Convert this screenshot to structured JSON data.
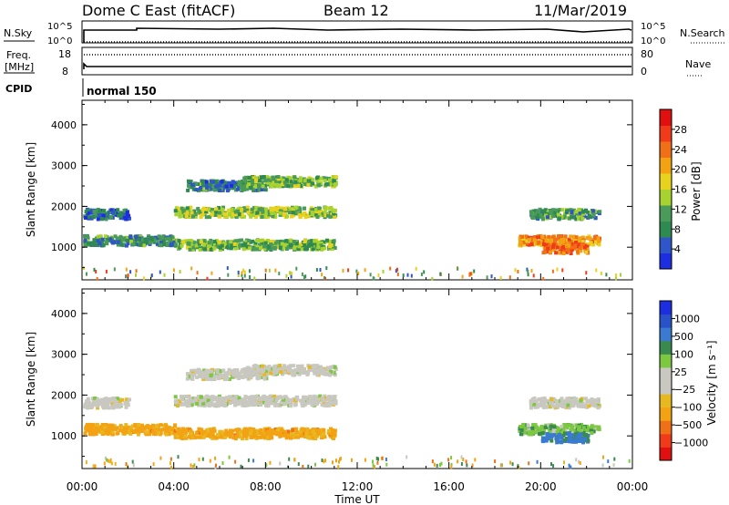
{
  "header": {
    "site": "Dome C East (fitACF)",
    "beam": "Beam 12",
    "date": "11/Mar/2019"
  },
  "status_panels": {
    "nsky_label": "N.Sky",
    "nsearch_label": "N.Search",
    "freq_label_1": "Freq.",
    "freq_label_2": "[MHz]",
    "nave_label": "Nave",
    "cpid_label": "CPID",
    "cpid_value": "normal 150",
    "nsky_ticks": [
      "10^5",
      "10^0"
    ],
    "nsearch_ticks": [
      "10^5",
      "10^0"
    ],
    "freq_ticks": [
      "18",
      "8"
    ],
    "nave_ticks": [
      "80",
      "0"
    ]
  },
  "colors": {
    "power": [
      "#1c2ee0",
      "#2f56c8",
      "#2f8a52",
      "#4a9a5a",
      "#a7d22f",
      "#e8d21e",
      "#f2a212",
      "#f07018",
      "#f03a1a",
      "#e01010"
    ],
    "velocity": [
      "#e01010",
      "#f03a1a",
      "#f07018",
      "#f2a212",
      "#e8b820",
      "#c8c8c0",
      "#c8c8c0",
      "#7cc840",
      "#3a8a50",
      "#3a7ad0",
      "#2a52c8",
      "#1c2ee0"
    ]
  },
  "chart_data": [
    {
      "type": "heatmap",
      "panel": "power",
      "ylabel": "Slant Range [km]",
      "yticks": [
        "1000",
        "2000",
        "3000",
        "4000"
      ],
      "ylim": [
        200,
        4600
      ],
      "xlim": [
        0,
        24
      ],
      "colorbar_label": "Power [dB]",
      "colorbar_ticks": [
        "4",
        "8",
        "12",
        "16",
        "20",
        "24",
        "28"
      ],
      "colorbar_range": [
        0,
        32
      ],
      "bands": [
        {
          "t0": 0.0,
          "t1": 2.0,
          "r": 1850,
          "v": 6
        },
        {
          "t0": 0.0,
          "t1": 4.0,
          "r": 1200,
          "v": 9
        },
        {
          "t0": 4.0,
          "t1": 11.0,
          "r": 1100,
          "v": 12
        },
        {
          "t0": 4.0,
          "t1": 11.0,
          "r": 1900,
          "v": 14
        },
        {
          "t0": 4.5,
          "t1": 8.0,
          "r": 2550,
          "v": 8
        },
        {
          "t0": 7.0,
          "t1": 11.0,
          "r": 2650,
          "v": 12
        },
        {
          "t0": 19.0,
          "t1": 22.5,
          "r": 1200,
          "v": 22
        },
        {
          "t0": 20.0,
          "t1": 22.0,
          "r": 1000,
          "v": 24
        },
        {
          "t0": 19.5,
          "t1": 22.5,
          "r": 1850,
          "v": 10
        }
      ]
    },
    {
      "type": "heatmap",
      "panel": "velocity",
      "ylabel": "Slant Range [km]",
      "yticks": [
        "1000",
        "2000",
        "3000",
        "4000"
      ],
      "ylim": [
        200,
        4600
      ],
      "xlim": [
        0,
        24
      ],
      "xlabel": "Time UT",
      "xticks": [
        "00:00",
        "04:00",
        "08:00",
        "12:00",
        "16:00",
        "20:00",
        "00:00"
      ],
      "colorbar_label": "Velocity [m s⁻¹]",
      "colorbar_ticks": [
        "1000",
        "500",
        "100",
        "25",
        "−25",
        "−100",
        "−500",
        "−1000"
      ],
      "bands": [
        {
          "t0": 0.0,
          "t1": 2.0,
          "r": 1850,
          "v": 0
        },
        {
          "t0": 0.0,
          "t1": 4.0,
          "r": 1200,
          "v": -150
        },
        {
          "t0": 4.0,
          "t1": 11.0,
          "r": 1100,
          "v": -150
        },
        {
          "t0": 4.0,
          "t1": 11.0,
          "r": 1900,
          "v": 0
        },
        {
          "t0": 4.5,
          "t1": 8.0,
          "r": 2550,
          "v": 0
        },
        {
          "t0": 7.0,
          "t1": 11.0,
          "r": 2650,
          "v": 0
        },
        {
          "t0": 19.0,
          "t1": 22.5,
          "r": 1200,
          "v": 80
        },
        {
          "t0": 20.0,
          "t1": 22.0,
          "r": 1000,
          "v": 300
        },
        {
          "t0": 19.5,
          "t1": 22.5,
          "r": 1850,
          "v": 0
        }
      ]
    }
  ]
}
